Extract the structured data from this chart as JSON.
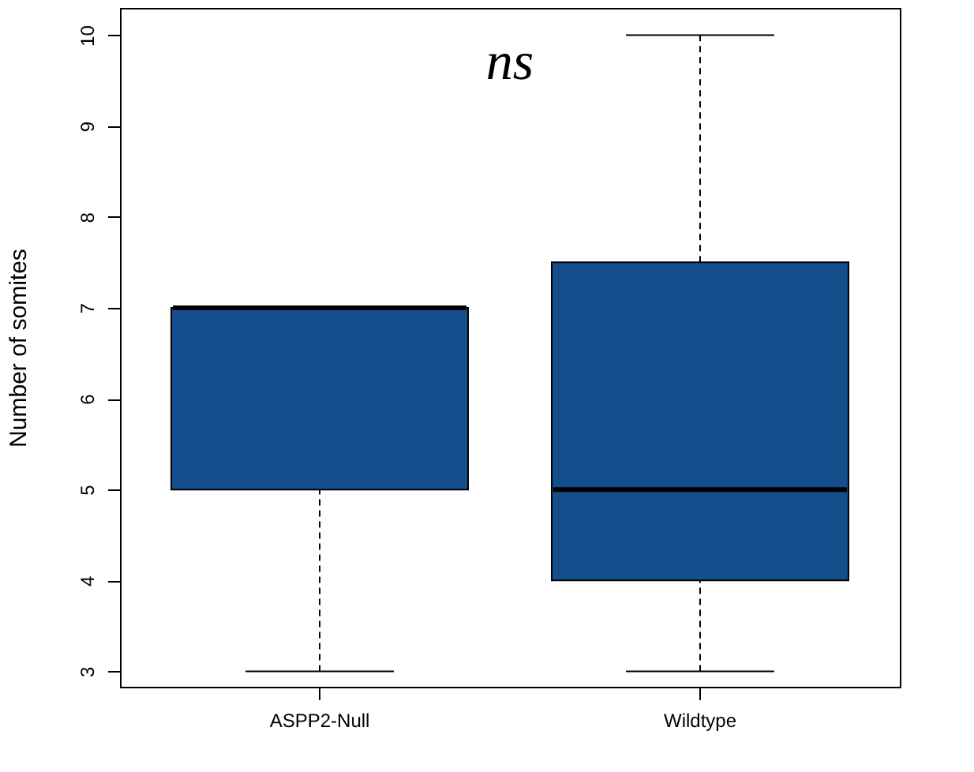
{
  "chart_data": {
    "type": "box",
    "ylabel": "Number of somites",
    "categories": [
      "ASPP2-Null",
      "Wildtype"
    ],
    "color": "#124f8c",
    "boxes": [
      {
        "low": 3,
        "q1": 5,
        "median": 7,
        "q3": 7,
        "high": 7
      },
      {
        "low": 3,
        "q1": 4,
        "median": 5,
        "q3": 7.5,
        "high": 10
      }
    ],
    "ylim": [
      2.83,
      10.3
    ],
    "yticks": [
      3,
      4,
      5,
      6,
      7,
      8,
      9,
      10
    ],
    "annotations": [
      "ns"
    ],
    "grid": false
  }
}
